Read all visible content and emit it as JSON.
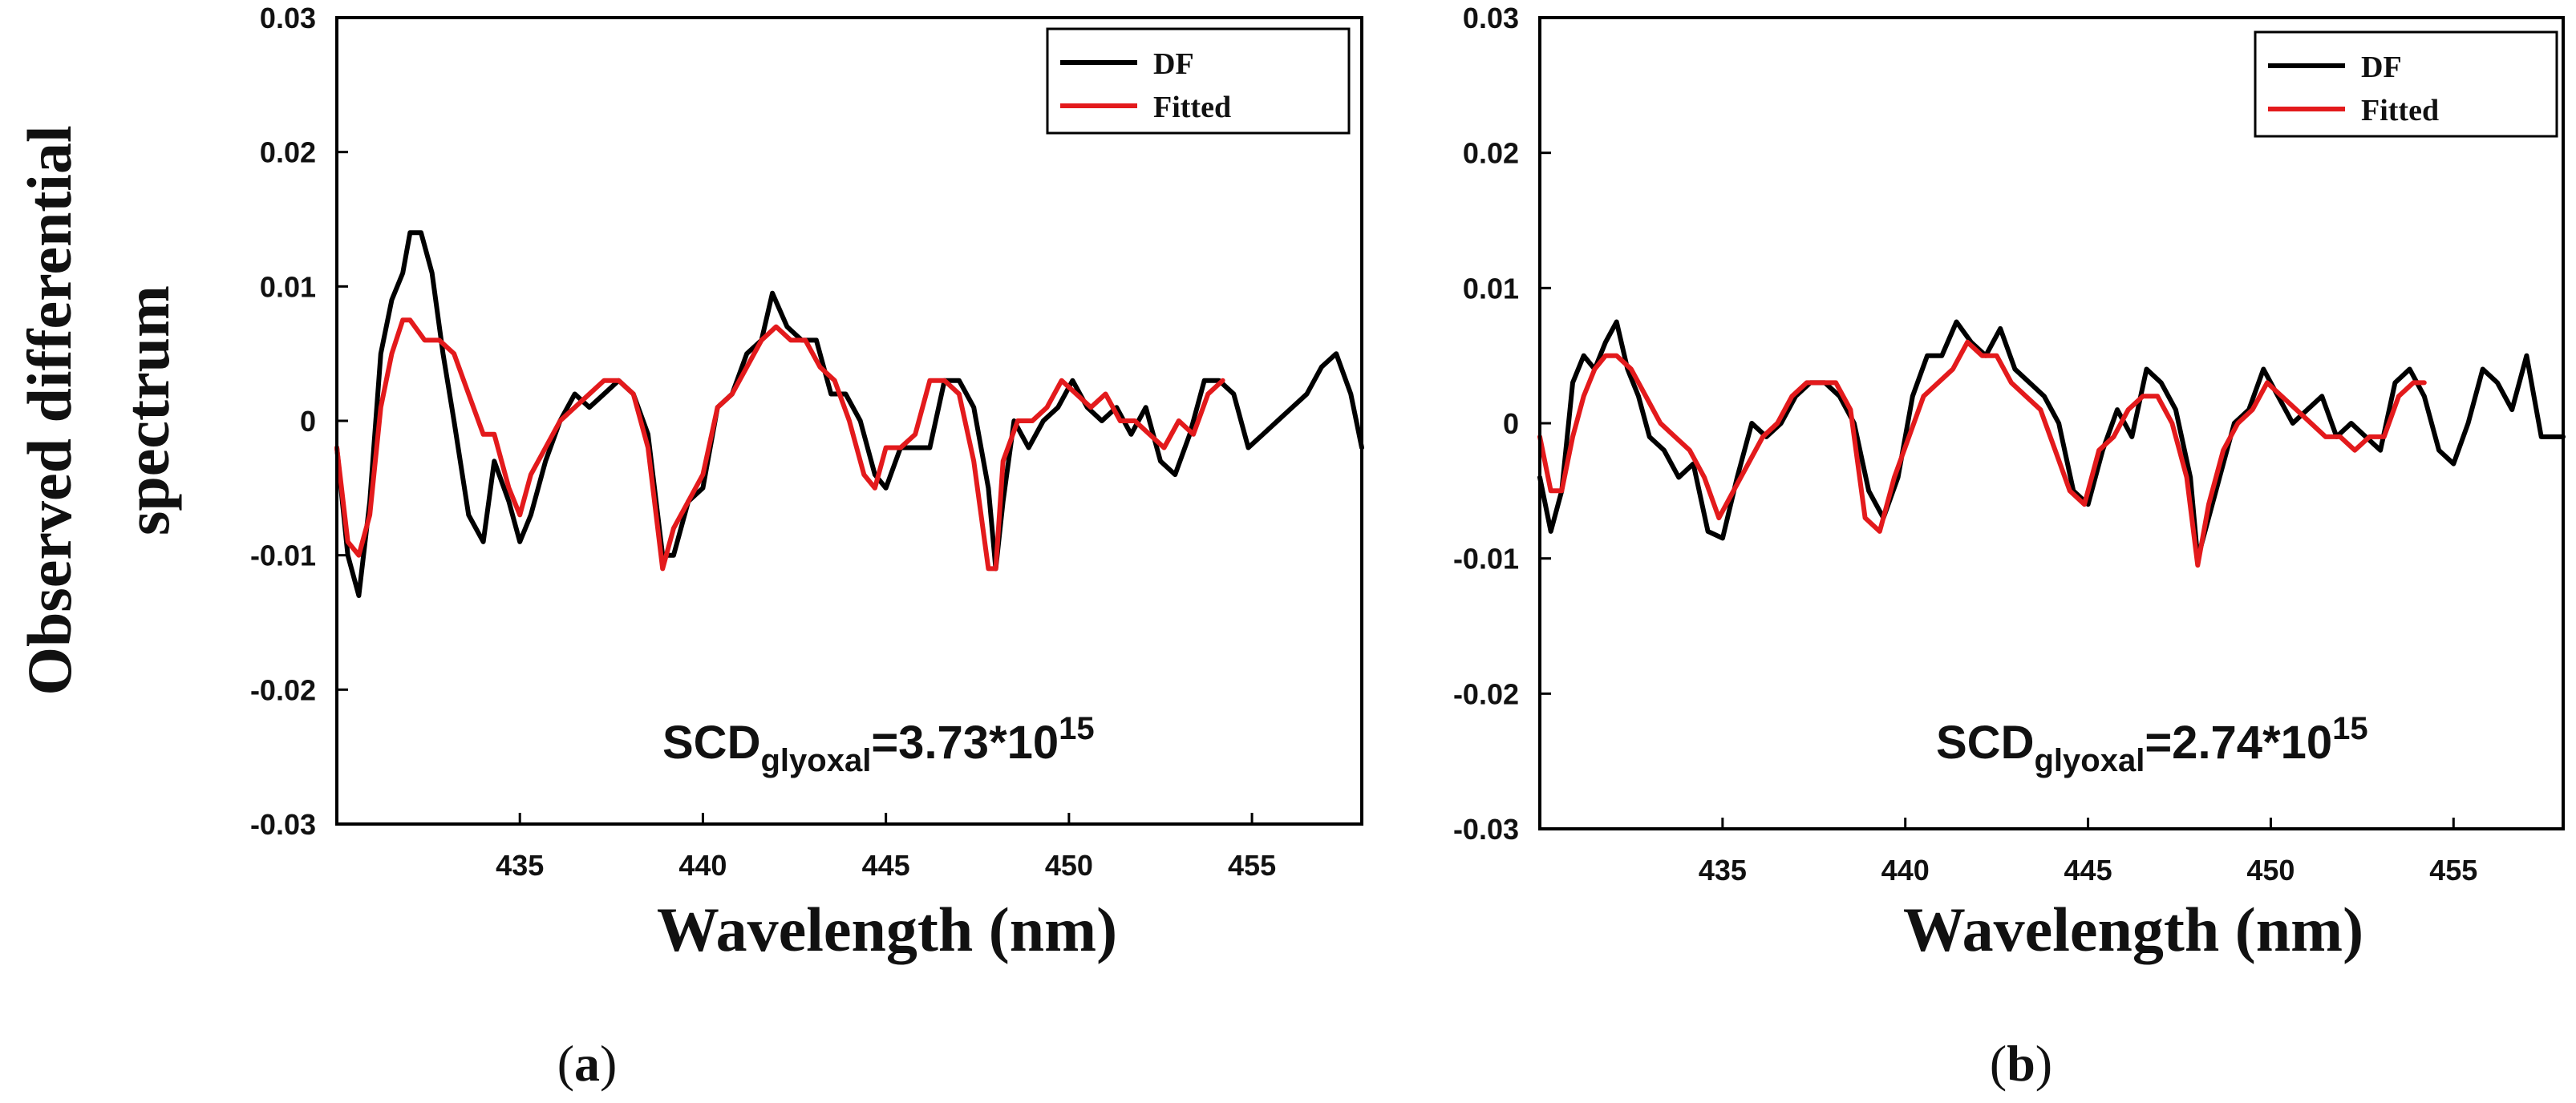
{
  "y_label_lines": [
    "Observed differential",
    "spectrum"
  ],
  "chart_data": [
    {
      "type": "line",
      "panel_label": "a",
      "xlabel": "Wavelength (nm)",
      "ylabel": "Observed differential spectrum",
      "xlim": [
        430,
        458
      ],
      "ylim": [
        -0.03,
        0.03
      ],
      "x_ticks": [
        435,
        440,
        445,
        450,
        455
      ],
      "x_tick_labels": [
        "435",
        "440",
        "445",
        "450",
        "455"
      ],
      "y_ticks": [
        0.03,
        0.02,
        0.01,
        0,
        -0.01,
        -0.02,
        -0.03
      ],
      "y_tick_labels": [
        "0.03",
        "0.02",
        "0.01",
        "0",
        "-0.01",
        "-0.02",
        "-0.03"
      ],
      "legend": {
        "position": "top-right",
        "entries": [
          "DF",
          "Fitted"
        ]
      },
      "annotation": {
        "main": "SCD",
        "sub": "glyoxal",
        "rest": "=3.73*10",
        "sup": "15"
      },
      "series": [
        {
          "name": "DF",
          "color": "#000000",
          "x": [
            430.0,
            430.3,
            430.6,
            430.9,
            431.2,
            431.5,
            431.8,
            432.0,
            432.3,
            432.6,
            432.9,
            433.2,
            433.6,
            434.0,
            434.3,
            434.7,
            435.0,
            435.3,
            435.7,
            436.1,
            436.5,
            436.9,
            437.3,
            437.7,
            438.1,
            438.5,
            438.9,
            439.2,
            439.6,
            440.0,
            440.4,
            440.8,
            441.2,
            441.6,
            441.9,
            442.3,
            442.7,
            443.1,
            443.5,
            443.9,
            444.3,
            444.7,
            445.0,
            445.4,
            445.8,
            446.2,
            446.6,
            447.0,
            447.4,
            447.8,
            448.0,
            448.2,
            448.5,
            448.9,
            449.3,
            449.7,
            450.1,
            450.5,
            450.9,
            451.3,
            451.7,
            452.1,
            452.5,
            452.9,
            453.3,
            453.7,
            454.1,
            454.5,
            454.9,
            455.3,
            455.7,
            456.1,
            456.5,
            456.9,
            457.3,
            457.7,
            458.0
          ],
          "y": [
            -0.002,
            -0.01,
            -0.013,
            -0.006,
            0.005,
            0.009,
            0.011,
            0.014,
            0.014,
            0.011,
            0.005,
            0.0,
            -0.007,
            -0.009,
            -0.003,
            -0.006,
            -0.009,
            -0.007,
            -0.003,
            0.0,
            0.002,
            0.001,
            0.002,
            0.003,
            0.002,
            -0.001,
            -0.01,
            -0.01,
            -0.006,
            -0.005,
            0.001,
            0.002,
            0.005,
            0.006,
            0.0095,
            0.007,
            0.006,
            0.006,
            0.002,
            0.002,
            0.0,
            -0.004,
            -0.005,
            -0.002,
            -0.002,
            -0.002,
            0.003,
            0.003,
            0.001,
            -0.005,
            -0.011,
            -0.006,
            0.0,
            -0.002,
            0.0,
            0.001,
            0.003,
            0.001,
            0.0,
            0.001,
            -0.001,
            0.001,
            -0.003,
            -0.004,
            -0.001,
            0.003,
            0.003,
            0.002,
            -0.002,
            -0.001,
            0.0,
            0.001,
            0.002,
            0.004,
            0.005,
            0.002,
            -0.002
          ]
        },
        {
          "name": "Fitted",
          "color": "#e31a1c",
          "x": [
            430.0,
            430.3,
            430.6,
            430.9,
            431.2,
            431.5,
            431.8,
            432.0,
            432.4,
            432.8,
            433.2,
            433.6,
            434.0,
            434.3,
            434.7,
            435.0,
            435.3,
            435.7,
            436.1,
            436.5,
            436.9,
            437.3,
            437.7,
            438.1,
            438.5,
            438.9,
            439.2,
            439.6,
            440.0,
            440.4,
            440.8,
            441.2,
            441.6,
            442.0,
            442.4,
            442.8,
            443.2,
            443.6,
            444.0,
            444.4,
            444.7,
            445.0,
            445.4,
            445.8,
            446.2,
            446.6,
            447.0,
            447.4,
            447.8,
            448.0,
            448.2,
            448.6,
            449.0,
            449.4,
            449.8,
            450.2,
            450.6,
            451.0,
            451.4,
            451.8,
            452.2,
            452.6,
            453.0,
            453.4,
            453.8,
            454.2
          ],
          "y": [
            -0.002,
            -0.009,
            -0.01,
            -0.007,
            0.001,
            0.005,
            0.0075,
            0.0075,
            0.006,
            0.006,
            0.005,
            0.002,
            -0.001,
            -0.001,
            -0.005,
            -0.007,
            -0.004,
            -0.002,
            0.0,
            0.001,
            0.002,
            0.003,
            0.003,
            0.002,
            -0.002,
            -0.011,
            -0.008,
            -0.006,
            -0.004,
            0.001,
            0.002,
            0.004,
            0.006,
            0.007,
            0.006,
            0.006,
            0.004,
            0.003,
            0.0,
            -0.004,
            -0.005,
            -0.002,
            -0.002,
            -0.001,
            0.003,
            0.003,
            0.002,
            -0.003,
            -0.011,
            -0.011,
            -0.003,
            0.0,
            0.0,
            0.001,
            0.003,
            0.002,
            0.001,
            0.002,
            0.0,
            0.0,
            -0.001,
            -0.002,
            0.0,
            -0.001,
            0.002,
            0.003
          ]
        }
      ]
    },
    {
      "type": "line",
      "panel_label": "b",
      "xlabel": "Wavelength (nm)",
      "ylabel": "",
      "xlim": [
        430,
        458
      ],
      "ylim": [
        -0.03,
        0.03
      ],
      "x_ticks": [
        435,
        440,
        445,
        450,
        455
      ],
      "x_tick_labels": [
        "435",
        "440",
        "445",
        "450",
        "455"
      ],
      "y_ticks": [
        0.03,
        0.02,
        0.01,
        0,
        -0.01,
        -0.02,
        -0.03
      ],
      "y_tick_labels": [
        "0.03",
        "0.02",
        "0.01",
        "0",
        "-0.01",
        "-0.02",
        "-0.03"
      ],
      "legend": {
        "position": "top-right",
        "entries": [
          "DF",
          "Fitted"
        ]
      },
      "annotation": {
        "main": "SCD",
        "sub": "glyoxal",
        "rest": "=2.74*10",
        "sup": "15"
      },
      "series": [
        {
          "name": "DF",
          "color": "#000000",
          "x": [
            430.0,
            430.3,
            430.6,
            430.9,
            431.2,
            431.5,
            431.8,
            432.1,
            432.4,
            432.7,
            433.0,
            433.4,
            433.8,
            434.2,
            434.6,
            435.0,
            435.4,
            435.8,
            436.2,
            436.6,
            437.0,
            437.4,
            437.8,
            438.2,
            438.6,
            439.0,
            439.4,
            439.8,
            440.2,
            440.6,
            441.0,
            441.4,
            441.8,
            442.2,
            442.6,
            443.0,
            443.4,
            443.8,
            444.2,
            444.6,
            445.0,
            445.4,
            445.8,
            446.2,
            446.6,
            447.0,
            447.4,
            447.8,
            448.0,
            448.2,
            448.6,
            449.0,
            449.4,
            449.8,
            450.2,
            450.6,
            451.0,
            451.4,
            451.8,
            452.2,
            452.6,
            453.0,
            453.4,
            453.8,
            454.2,
            454.6,
            455.0,
            455.4,
            455.8,
            456.2,
            456.6,
            457.0,
            457.4,
            458.0
          ],
          "y": [
            -0.004,
            -0.008,
            -0.005,
            0.003,
            0.005,
            0.004,
            0.006,
            0.0075,
            0.004,
            0.002,
            -0.001,
            -0.002,
            -0.004,
            -0.003,
            -0.008,
            -0.0085,
            -0.004,
            0.0,
            -0.001,
            0.0,
            0.002,
            0.003,
            0.003,
            0.002,
            0.0,
            -0.005,
            -0.007,
            -0.004,
            0.002,
            0.005,
            0.005,
            0.0075,
            0.006,
            0.005,
            0.007,
            0.004,
            0.003,
            0.002,
            0.0,
            -0.005,
            -0.006,
            -0.002,
            0.001,
            -0.001,
            0.004,
            0.003,
            0.001,
            -0.004,
            -0.01,
            -0.008,
            -0.004,
            0.0,
            0.001,
            0.004,
            0.002,
            0.0,
            0.001,
            0.002,
            -0.001,
            0.0,
            -0.001,
            -0.002,
            0.003,
            0.004,
            0.002,
            -0.002,
            -0.003,
            0.0,
            0.004,
            0.003,
            0.001,
            0.005,
            -0.001,
            -0.001
          ]
        },
        {
          "name": "Fitted",
          "color": "#e31a1c",
          "x": [
            430.0,
            430.3,
            430.6,
            430.9,
            431.2,
            431.5,
            431.8,
            432.1,
            432.5,
            432.9,
            433.3,
            433.7,
            434.1,
            434.5,
            434.9,
            435.3,
            435.7,
            436.1,
            436.5,
            436.9,
            437.3,
            437.7,
            438.1,
            438.5,
            438.9,
            439.3,
            439.7,
            440.1,
            440.5,
            440.9,
            441.3,
            441.7,
            442.1,
            442.5,
            442.9,
            443.3,
            443.7,
            444.1,
            444.5,
            444.9,
            445.3,
            445.7,
            446.1,
            446.5,
            446.9,
            447.3,
            447.7,
            448.0,
            448.3,
            448.7,
            449.1,
            449.5,
            449.9,
            450.3,
            450.7,
            451.1,
            451.5,
            451.9,
            452.3,
            452.7,
            453.1,
            453.5,
            453.9,
            454.2
          ],
          "y": [
            -0.001,
            -0.005,
            -0.005,
            -0.001,
            0.002,
            0.004,
            0.005,
            0.005,
            0.004,
            0.002,
            0.0,
            -0.001,
            -0.002,
            -0.004,
            -0.007,
            -0.005,
            -0.003,
            -0.001,
            0.0,
            0.002,
            0.003,
            0.003,
            0.003,
            0.001,
            -0.007,
            -0.008,
            -0.004,
            -0.001,
            0.002,
            0.003,
            0.004,
            0.006,
            0.005,
            0.005,
            0.003,
            0.002,
            0.001,
            -0.002,
            -0.005,
            -0.006,
            -0.002,
            -0.001,
            0.001,
            0.002,
            0.002,
            0.0,
            -0.004,
            -0.0105,
            -0.006,
            -0.002,
            0.0,
            0.001,
            0.003,
            0.002,
            0.001,
            0.0,
            -0.001,
            -0.001,
            -0.002,
            -0.001,
            -0.001,
            0.002,
            0.003,
            0.003
          ]
        }
      ]
    }
  ]
}
